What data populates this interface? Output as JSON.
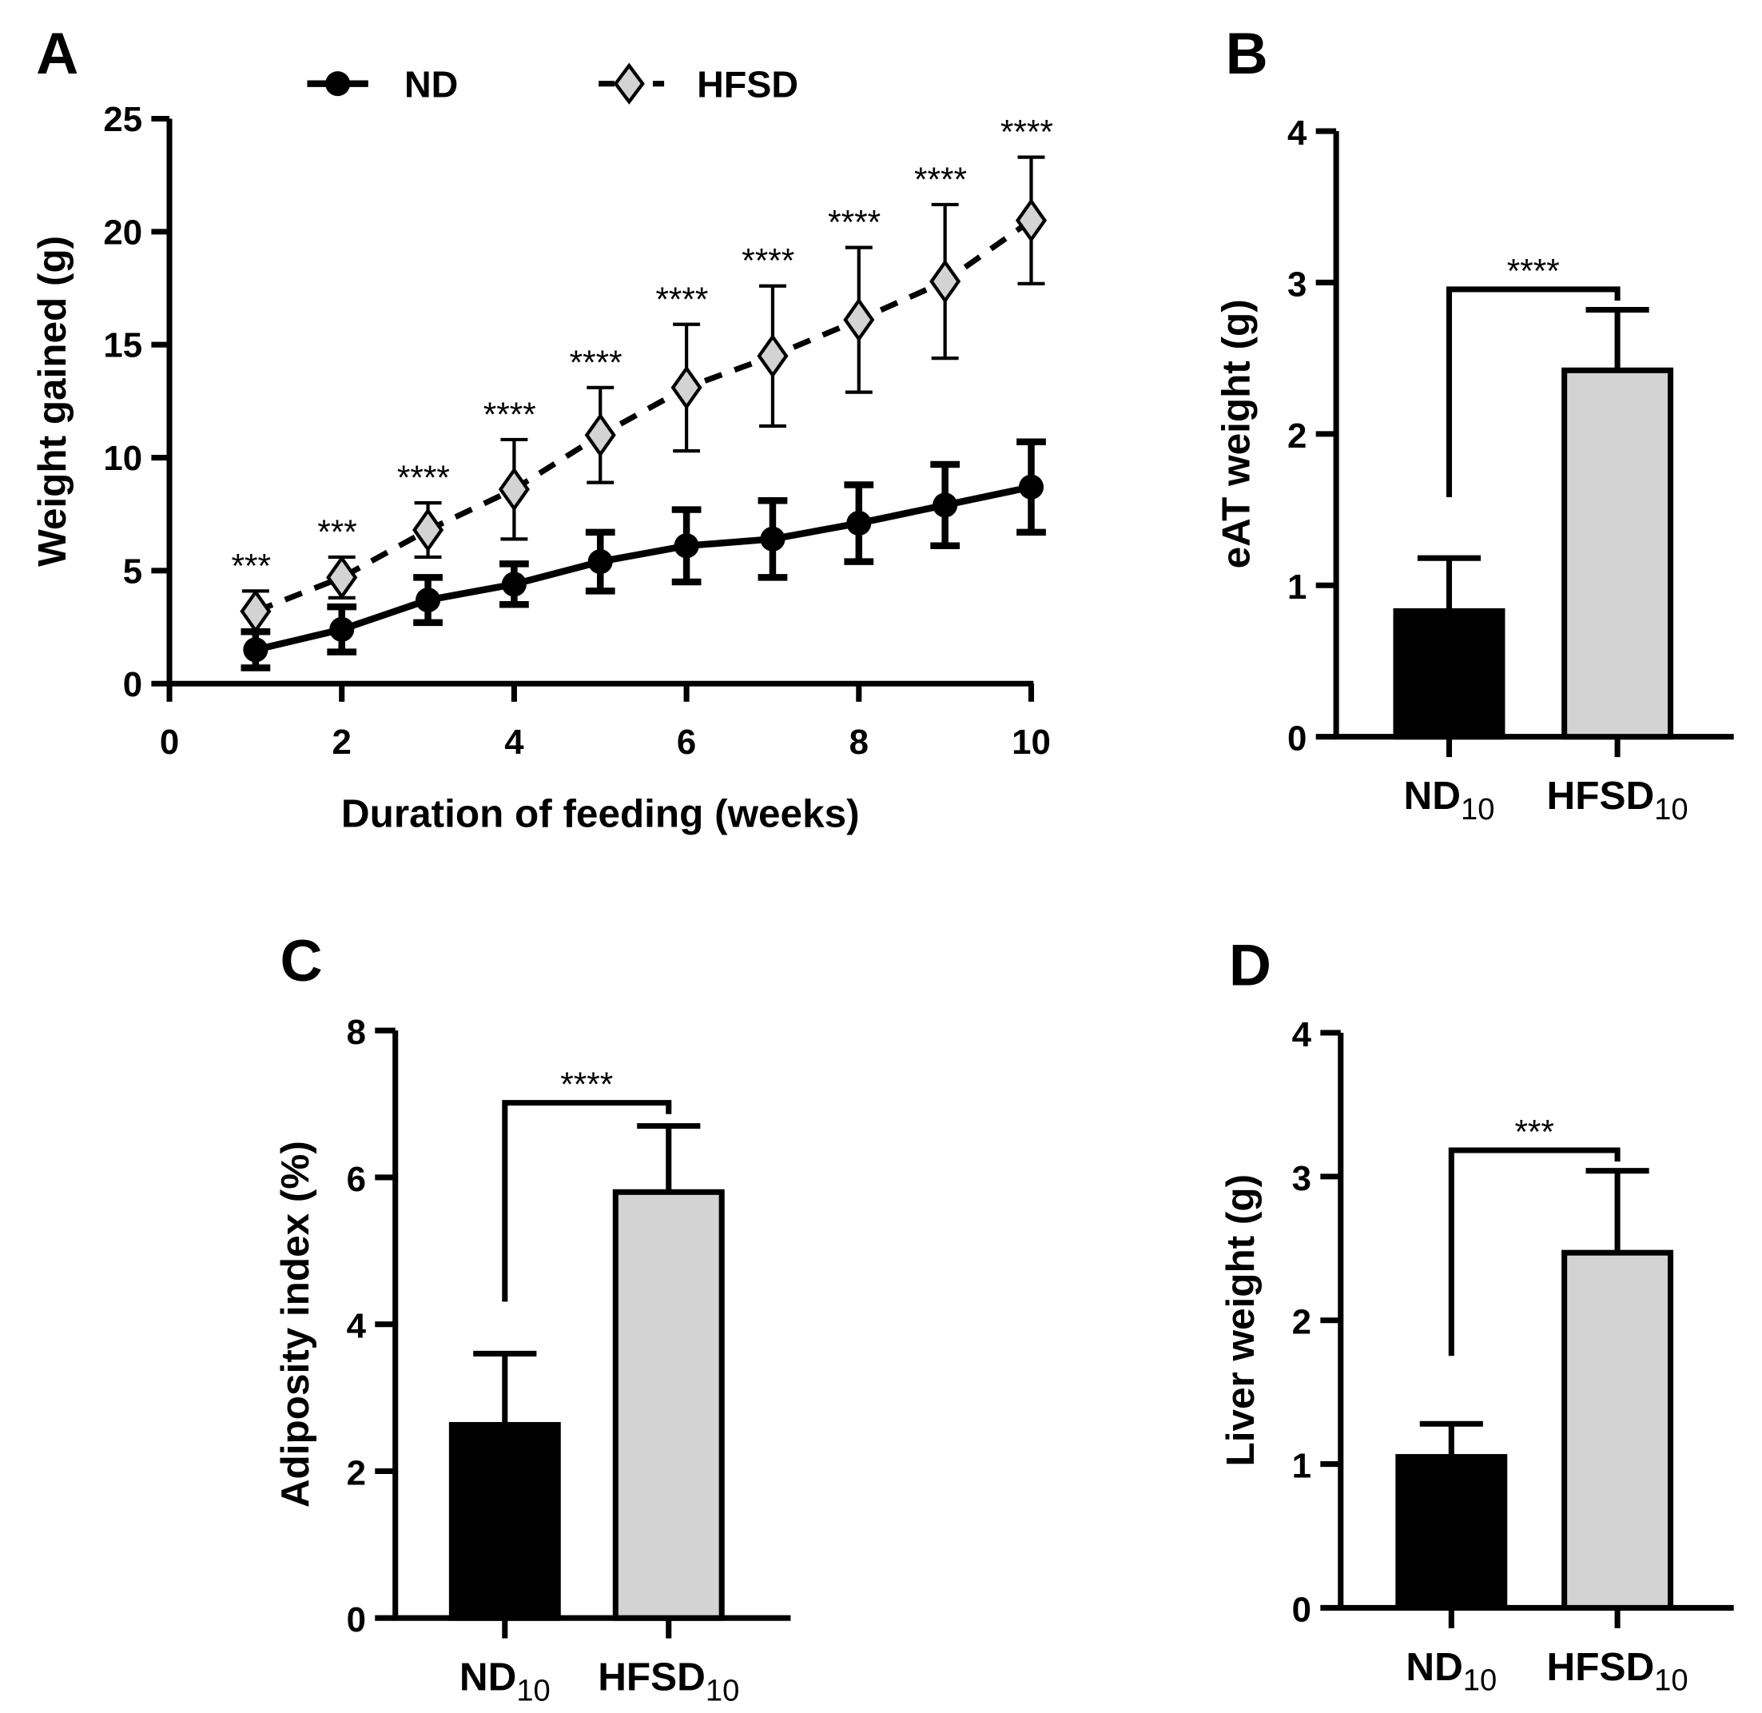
{
  "colors": {
    "nd": "#000000",
    "hfsd": "#d3d3d3",
    "axis": "#000000"
  },
  "chart_data": [
    {
      "panel": "A",
      "type": "line",
      "xlabel": "Duration of feeding (weeks)",
      "ylabel": "Weight gained (g)",
      "xlim": [
        0,
        10
      ],
      "ylim": [
        0,
        25
      ],
      "xticks": [
        0,
        2,
        4,
        6,
        8,
        10
      ],
      "yticks": [
        0,
        5,
        10,
        15,
        20,
        25
      ],
      "legend": {
        "placement": "top",
        "entries": [
          "ND",
          "HFSD"
        ]
      },
      "x": [
        1,
        2,
        3,
        4,
        5,
        6,
        7,
        8,
        9,
        10
      ],
      "series": [
        {
          "name": "ND",
          "marker": "circle",
          "line": "solid",
          "values": [
            1.5,
            2.4,
            3.7,
            4.4,
            5.4,
            6.1,
            6.4,
            7.1,
            7.9,
            8.7
          ],
          "error": [
            0.8,
            1.0,
            1.0,
            0.9,
            1.3,
            1.6,
            1.7,
            1.7,
            1.8,
            2.0
          ]
        },
        {
          "name": "HFSD",
          "marker": "diamond",
          "line": "dashed",
          "values": [
            3.2,
            4.7,
            6.8,
            8.6,
            11.0,
            13.1,
            14.5,
            16.1,
            17.8,
            20.5
          ],
          "error": [
            0.9,
            0.9,
            1.2,
            2.2,
            2.1,
            2.8,
            3.1,
            3.2,
            3.4,
            2.8
          ]
        }
      ],
      "significance": [
        "***",
        "***",
        "****",
        "****",
        "****",
        "****",
        "****",
        "****",
        "****",
        "****"
      ]
    },
    {
      "panel": "B",
      "type": "bar",
      "ylabel": "eAT weight (g)",
      "ylim": [
        0,
        4
      ],
      "yticks": [
        0,
        1,
        2,
        3,
        4
      ],
      "categories": [
        {
          "main": "ND",
          "sub": "10"
        },
        {
          "main": "HFSD",
          "sub": "10"
        }
      ],
      "values": [
        0.83,
        2.42
      ],
      "error": [
        0.35,
        0.4
      ],
      "significance": "****"
    },
    {
      "panel": "C",
      "type": "bar",
      "ylabel": "Adiposity index (%)",
      "ylim": [
        0,
        8
      ],
      "yticks": [
        0,
        2,
        4,
        6,
        8
      ],
      "categories": [
        {
          "main": "ND",
          "sub": "10"
        },
        {
          "main": "HFSD",
          "sub": "10"
        }
      ],
      "values": [
        2.63,
        5.8
      ],
      "error": [
        0.97,
        0.9
      ],
      "significance": "****"
    },
    {
      "panel": "D",
      "type": "bar",
      "ylabel": "Liver weight (g)",
      "ylim": [
        0,
        4
      ],
      "yticks": [
        0,
        1,
        2,
        3,
        4
      ],
      "categories": [
        {
          "main": "ND",
          "sub": "10"
        },
        {
          "main": "HFSD",
          "sub": "10"
        }
      ],
      "values": [
        1.05,
        2.47
      ],
      "error": [
        0.23,
        0.57
      ],
      "significance": "***"
    }
  ]
}
